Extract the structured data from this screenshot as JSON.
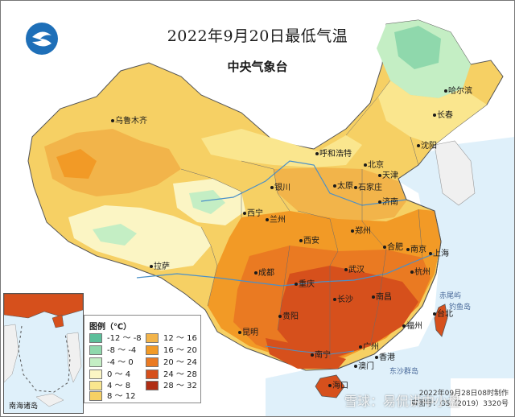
{
  "title": "2022年9月20日最低气温",
  "agency": "中央气象台",
  "logo": "cma-logo",
  "legend": {
    "title": "图例（℃）",
    "items": [
      {
        "range": "-12 ～ -8",
        "color": "#5cbf9a"
      },
      {
        "range": "-8 ～ -4",
        "color": "#8fd8ac"
      },
      {
        "range": "-4 ～ 0",
        "color": "#c4eec4"
      },
      {
        "range": "0 ～ 4",
        "color": "#fbf5c4"
      },
      {
        "range": "4 ～ 8",
        "color": "#fae68e"
      },
      {
        "range": "8 ～ 12",
        "color": "#f6d064"
      },
      {
        "range": "12 ～ 16",
        "color": "#f2b44a"
      },
      {
        "range": "16 ～ 20",
        "color": "#f29a26"
      },
      {
        "range": "20 ～ 24",
        "color": "#ea7a22"
      },
      {
        "range": "24 ～ 28",
        "color": "#d6501c"
      },
      {
        "range": "28 ～ 32",
        "color": "#b02e14"
      }
    ]
  },
  "cities": [
    {
      "name": "哈尔滨"
    },
    {
      "name": "长春"
    },
    {
      "name": "沈阳"
    },
    {
      "name": "呼和浩特"
    },
    {
      "name": "北京"
    },
    {
      "name": "天津"
    },
    {
      "name": "石家庄"
    },
    {
      "name": "太原"
    },
    {
      "name": "济南"
    },
    {
      "name": "银川"
    },
    {
      "name": "西宁"
    },
    {
      "name": "兰州"
    },
    {
      "name": "乌鲁木齐"
    },
    {
      "name": "拉萨"
    },
    {
      "name": "西安"
    },
    {
      "name": "郑州"
    },
    {
      "name": "合肥"
    },
    {
      "name": "南京"
    },
    {
      "name": "上海"
    },
    {
      "name": "杭州"
    },
    {
      "name": "武汉"
    },
    {
      "name": "成都"
    },
    {
      "name": "重庆"
    },
    {
      "name": "长沙"
    },
    {
      "name": "南昌"
    },
    {
      "name": "福州"
    },
    {
      "name": "台北"
    },
    {
      "name": "贵阳"
    },
    {
      "name": "昆明"
    },
    {
      "name": "南宁"
    },
    {
      "name": "广州"
    },
    {
      "name": "香港"
    },
    {
      "name": "澳门"
    },
    {
      "name": "海口"
    }
  ],
  "places": [
    {
      "name": "赤尾屿"
    },
    {
      "name": "钓鱼岛"
    },
    {
      "name": "东沙群岛"
    }
  ],
  "inset_label": "南海诸岛",
  "footer": {
    "date": "2022年09月28日08时制作",
    "map_no": "审图号：GS（2019）3320号"
  },
  "watermark": "雪球：易侃讲中小盘",
  "map_colors": {
    "land_base": "#f6d064",
    "ocean": "#dff0fa",
    "river": "#4a90c8",
    "border": "#555555"
  }
}
